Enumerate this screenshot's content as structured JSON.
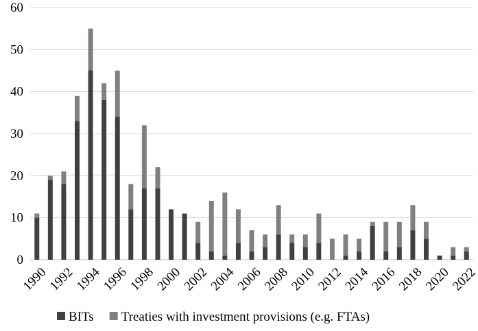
{
  "chart_data": {
    "type": "bar",
    "stacked": true,
    "title": "",
    "xlabel": "",
    "ylabel": "",
    "ylim": [
      0,
      60
    ],
    "yticks": [
      0,
      10,
      20,
      30,
      40,
      50,
      60
    ],
    "grid": true,
    "legend_position": "bottom",
    "categories": [
      "1990",
      "1991",
      "1992",
      "1993",
      "1994",
      "1995",
      "1996",
      "1997",
      "1998",
      "1999",
      "2000",
      "2001",
      "2002",
      "2003",
      "2004",
      "2005",
      "2006",
      "2007",
      "2008",
      "2009",
      "2010",
      "2011",
      "2012",
      "2013",
      "2014",
      "2015",
      "2016",
      "2017",
      "2018",
      "2019",
      "2020",
      "2021",
      "2022"
    ],
    "xtick_labels": [
      "1990",
      "",
      "1992",
      "",
      "1994",
      "",
      "1996",
      "",
      "1998",
      "",
      "2000",
      "",
      "2002",
      "",
      "2004",
      "",
      "2006",
      "",
      "2008",
      "",
      "2010",
      "",
      "2012",
      "",
      "2014",
      "",
      "2016",
      "",
      "2018",
      "",
      "2020",
      "",
      "2022"
    ],
    "series": [
      {
        "name": "BITs",
        "color": "#404040",
        "values": [
          10,
          19,
          18,
          33,
          45,
          38,
          34,
          12,
          17,
          17,
          12,
          11,
          4,
          2,
          1,
          4,
          2,
          3,
          6,
          4,
          3,
          4,
          0,
          1,
          2,
          8,
          2,
          3,
          7,
          5,
          1,
          1,
          2
        ]
      },
      {
        "name": "Treaties with investment provisions (e.g. FTAs)",
        "color": "#808080",
        "values": [
          1,
          1,
          3,
          6,
          10,
          4,
          11,
          6,
          15,
          5,
          0,
          0,
          5,
          12,
          15,
          8,
          5,
          3,
          7,
          2,
          3,
          7,
          5,
          5,
          3,
          1,
          7,
          6,
          6,
          4,
          0,
          2,
          1
        ]
      }
    ]
  }
}
